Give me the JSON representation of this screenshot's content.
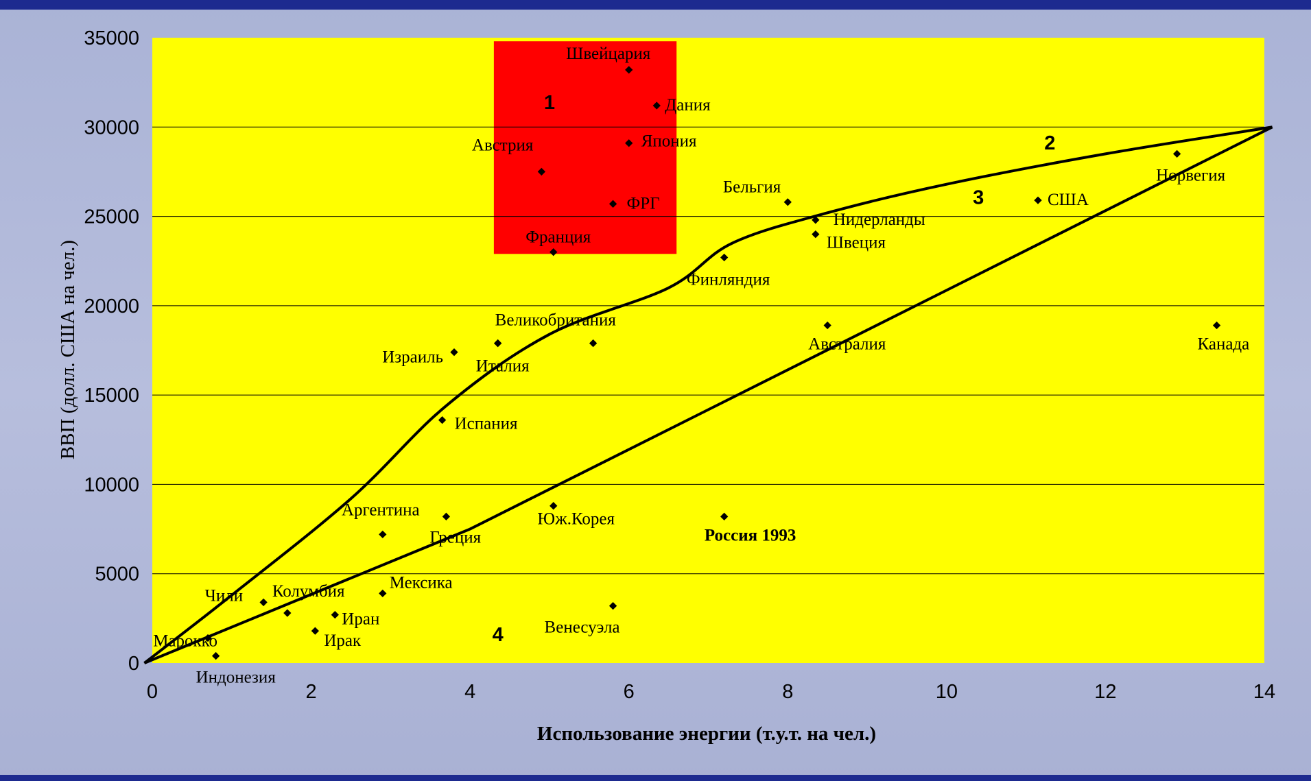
{
  "chart_data": {
    "type": "scatter",
    "title": "",
    "xlabel": "Использование энергии (т.у.т. на чел.)",
    "ylabel": "ВВП (долл. США на чел.)",
    "xlim": [
      0,
      14
    ],
    "ylim": [
      0,
      35000
    ],
    "xticks": [
      "0",
      "2",
      "4",
      "6",
      "8",
      "10",
      "12",
      "14"
    ],
    "xtick_values": [
      0,
      2,
      4,
      6,
      8,
      10,
      12,
      14
    ],
    "yticks": [
      "0",
      "5000",
      "10000",
      "15000",
      "20000",
      "25000",
      "30000",
      "35000"
    ],
    "ytick_values": [
      0,
      5000,
      10000,
      15000,
      20000,
      25000,
      30000,
      35000
    ],
    "grid": "horizontal",
    "plot_background": "#ffff00",
    "highlight_background": "#ff0000",
    "highlight_region": {
      "x0": 4.3,
      "x1": 6.6,
      "y0": 22900,
      "y1": 34800
    },
    "points": [
      {
        "label": "Швейцария",
        "x": 6.0,
        "y": 33200
      },
      {
        "label": "Дания",
        "x": 6.35,
        "y": 31200
      },
      {
        "label": "Япония",
        "x": 6.0,
        "y": 29100
      },
      {
        "label": "Австрия",
        "x": 4.9,
        "y": 27500
      },
      {
        "label": "ФРГ",
        "x": 5.8,
        "y": 25700
      },
      {
        "label": "Франция",
        "x": 5.05,
        "y": 23000
      },
      {
        "label": "Бельгия",
        "x": 8.0,
        "y": 25800
      },
      {
        "label": "Нидерланды",
        "x": 8.35,
        "y": 24800
      },
      {
        "label": "Швеция",
        "x": 8.35,
        "y": 24000
      },
      {
        "label": "Финляндия",
        "x": 7.2,
        "y": 22700
      },
      {
        "label": "США",
        "x": 11.15,
        "y": 25900
      },
      {
        "label": "Норвегия",
        "x": 12.9,
        "y": 28500
      },
      {
        "label": "Великобритания",
        "x": 4.35,
        "y": 17900
      },
      {
        "label": "",
        "x": 5.55,
        "y": 17900
      },
      {
        "label": "Израиль",
        "x": 3.8,
        "y": 17400
      },
      {
        "label": "Италия",
        "x": 4.35,
        "y": 17900
      },
      {
        "label": "Австралия",
        "x": 8.5,
        "y": 18900
      },
      {
        "label": "Канада",
        "x": 13.4,
        "y": 18900
      },
      {
        "label": "Испания",
        "x": 3.65,
        "y": 13600
      },
      {
        "label": "Аргентина",
        "x": 2.9,
        "y": 7200
      },
      {
        "label": "Греция",
        "x": 3.7,
        "y": 8200
      },
      {
        "label": "Юж.Корея",
        "x": 5.05,
        "y": 8800
      },
      {
        "label": "Россия 1993",
        "x": 7.2,
        "y": 8200
      },
      {
        "label": "Чили",
        "x": 1.4,
        "y": 3400
      },
      {
        "label": "Колумбия",
        "x": 1.7,
        "y": 2800
      },
      {
        "label": "Мексика",
        "x": 2.9,
        "y": 3900
      },
      {
        "label": "Иран",
        "x": 2.3,
        "y": 2700
      },
      {
        "label": "Ирак",
        "x": 2.05,
        "y": 1800
      },
      {
        "label": "Марокко",
        "x": 0.7,
        "y": 1400
      },
      {
        "label": "Индонезия",
        "x": 0.8,
        "y": 400
      },
      {
        "label": "Венесуэла",
        "x": 5.8,
        "y": 3200
      }
    ],
    "curves": [
      {
        "name": "2",
        "points": [
          [
            -0.1,
            0
          ],
          [
            1.0,
            3800
          ],
          [
            2.5,
            9200
          ],
          [
            3.7,
            14400
          ],
          [
            5.0,
            18400
          ],
          [
            6.5,
            21000
          ],
          [
            7.3,
            23500
          ],
          [
            8.5,
            25200
          ],
          [
            10.0,
            26800
          ],
          [
            12.0,
            28500
          ],
          [
            14.1,
            30000
          ]
        ]
      },
      {
        "name": "3",
        "points": [
          [
            -0.1,
            0
          ],
          [
            4.0,
            7500
          ],
          [
            14.1,
            30000
          ]
        ]
      }
    ],
    "region_labels": [
      {
        "text": "1",
        "x": 5.0,
        "y": 31000
      },
      {
        "text": "2",
        "x": 11.3,
        "y": 28750
      },
      {
        "text": "3",
        "x": 10.4,
        "y": 25700
      },
      {
        "text": "4",
        "x": 4.35,
        "y": 1230
      }
    ]
  }
}
